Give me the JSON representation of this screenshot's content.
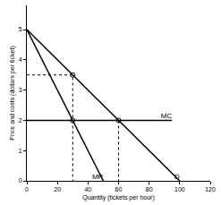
{
  "chart_data": {
    "type": "line",
    "x_label": "Quantity (tickets per hour)",
    "y_label": "Price and costs (dollars per ticket)",
    "xlim": [
      0,
      120
    ],
    "xticks": [
      0,
      20,
      40,
      60,
      80,
      100,
      120
    ],
    "ylim": [
      0,
      5.8
    ],
    "yticks": [
      0,
      1,
      2,
      3,
      4,
      5
    ],
    "grid": false,
    "series": [
      {
        "name": "D",
        "color": "#000000",
        "x": [
          0,
          100
        ],
        "values": [
          5,
          0
        ]
      },
      {
        "name": "MR",
        "color": "#000000",
        "x": [
          0,
          50
        ],
        "values": [
          5,
          0
        ]
      },
      {
        "name": "MC",
        "color": "#000000",
        "x": [
          0,
          95
        ],
        "values": [
          2,
          2
        ]
      },
      {
        "color": "#000000",
        "line_style": "dotted",
        "x": [
          0,
          30,
          30
        ],
        "values": [
          3.5,
          3.5,
          0
        ]
      },
      {
        "color": "#000000",
        "line_style": "dotted",
        "x": [
          60,
          60
        ],
        "values": [
          2,
          0
        ]
      },
      {
        "type": "scatter",
        "marker": "circle-open",
        "color": "#000000",
        "x": [
          30,
          30,
          60
        ],
        "values": [
          3.5,
          2,
          2
        ]
      }
    ]
  }
}
